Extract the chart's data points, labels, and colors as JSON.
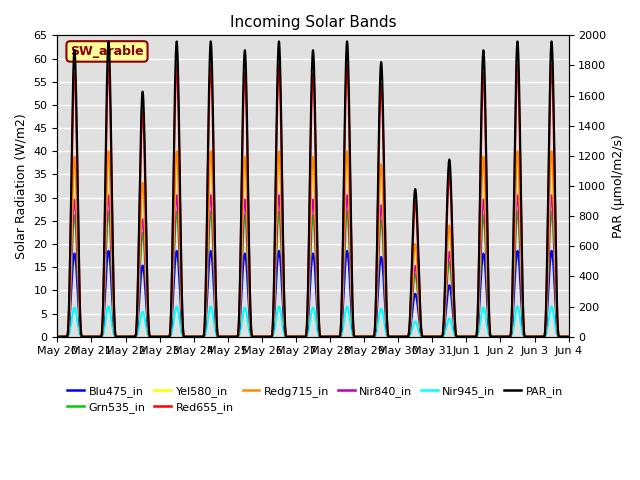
{
  "title": "Incoming Solar Bands",
  "ylabel_left": "Solar Radiation (W/m2)",
  "ylabel_right": "PAR (µmol/m2/s)",
  "annotation_text": "SW_arable",
  "annotation_color": "#8B0000",
  "annotation_bg": "#FFFF99",
  "annotation_border": "#8B0000",
  "ylim_left": [
    0,
    65
  ],
  "ylim_right": [
    0,
    2000
  ],
  "n_days": 15,
  "series_colors": {
    "Blu475_in": "#0000FF",
    "Grn535_in": "#00CC00",
    "Yel580_in": "#FFFF00",
    "Red655_in": "#FF0000",
    "Redg715_in": "#FF8800",
    "Nir840_in": "#BB00BB",
    "Nir945_in": "#00FFFF",
    "PAR_in": "#000000"
  },
  "series_peaks": {
    "Blu475_in": 18.5,
    "Grn535_in": 27.0,
    "Yel580_in": 39.0,
    "Red655_in": 58.5,
    "Redg715_in": 40.0,
    "Nir840_in": 30.5,
    "Nir945_in": 6.5,
    "PAR_in": 1960
  },
  "series_par_scale": {
    "Blu475_in": false,
    "Grn535_in": false,
    "Yel580_in": false,
    "Red655_in": false,
    "Redg715_in": false,
    "Nir840_in": false,
    "Nir945_in": false,
    "PAR_in": true
  },
  "day_peak_factors": [
    0.97,
    1.0,
    0.83,
    1.0,
    1.0,
    0.97,
    1.0,
    0.97,
    1.0,
    0.93,
    0.5,
    0.6,
    0.97,
    1.0,
    1.0
  ],
  "background_color": "#E0E0E0",
  "grid_color": "#FFFFFF",
  "tick_label_dates": [
    "May 20",
    "May 21",
    "May 22",
    "May 23",
    "May 24",
    "May 25",
    "May 26",
    "May 27",
    "May 28",
    "May 29",
    "May 30",
    "May 31",
    "Jun 1",
    "Jun 2",
    "Jun 3",
    "Jun 4"
  ],
  "draw_order": [
    "Nir945_in",
    "Blu475_in",
    "Grn535_in",
    "Nir840_in",
    "Yel580_in",
    "Redg715_in",
    "Red655_in",
    "PAR_in"
  ],
  "legend_order": [
    "Blu475_in",
    "Grn535_in",
    "Yel580_in",
    "Red655_in",
    "Redg715_in",
    "Nir840_in",
    "Nir945_in",
    "PAR_in"
  ]
}
